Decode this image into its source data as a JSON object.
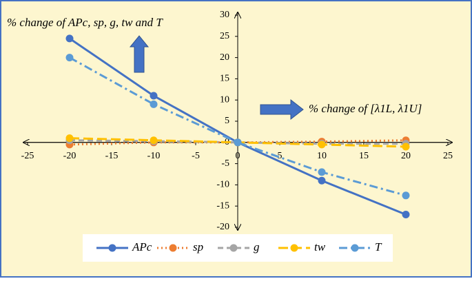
{
  "chart_data": {
    "type": "line",
    "annotations": [
      "% change of APc, sp, g, tw and T",
      "% change of [λ1L, λ1U]"
    ],
    "x": [
      -20,
      -10,
      0,
      10,
      20
    ],
    "series": [
      {
        "name": "APc",
        "color": "#4472c4",
        "line_style": "solid",
        "values": [
          24.5,
          11,
          0,
          -9,
          -17
        ]
      },
      {
        "name": "sp",
        "color": "#ed7d31",
        "line_style": "dotted",
        "values": [
          -0.5,
          0,
          0,
          0.2,
          0.5
        ]
      },
      {
        "name": "g",
        "color": "#a5a5a5",
        "line_style": "dashed",
        "values": [
          0.5,
          0.3,
          0,
          -0.3,
          -0.3
        ]
      },
      {
        "name": "tw",
        "color": "#ffc000",
        "line_style": "long-dash",
        "values": [
          1,
          0.5,
          0,
          -0.5,
          -1
        ]
      },
      {
        "name": "T",
        "color": "#5b9bd5",
        "line_style": "dash-dot",
        "values": [
          20,
          9,
          0,
          -7,
          -12.5
        ]
      }
    ],
    "xlim": [
      -25,
      25
    ],
    "xticks": [
      -25,
      -20,
      -15,
      -10,
      -5,
      0,
      5,
      10,
      15,
      20,
      25
    ],
    "ylim": [
      -20,
      30
    ],
    "yticks": [
      -20,
      -15,
      -10,
      -5,
      0,
      5,
      10,
      15,
      20,
      25,
      30
    ],
    "legend": "bottom"
  }
}
